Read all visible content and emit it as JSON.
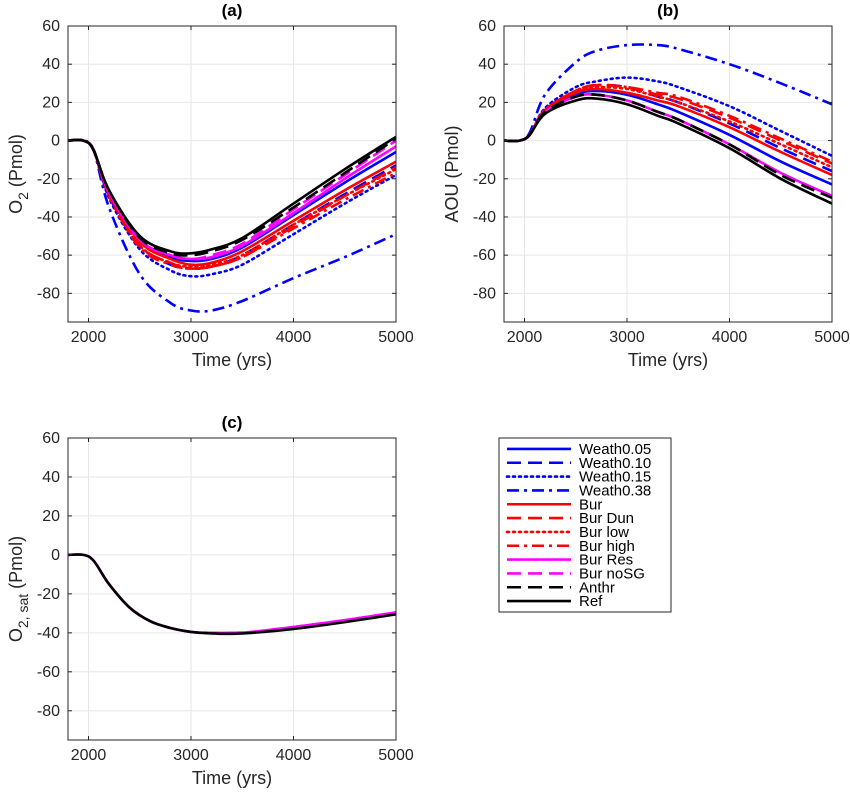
{
  "chart_data": {
    "type": "line",
    "x_ticks": [
      2000,
      3000,
      4000,
      5000
    ],
    "y_ticks": [
      60,
      40,
      20,
      0,
      -20,
      -40,
      -60,
      -80
    ],
    "grid": true,
    "legend": {
      "placement": "bottom-right panel",
      "entries": [
        {
          "name": "Weath0.05",
          "color": "#0000ff",
          "style": "solid"
        },
        {
          "name": "Weath0.10",
          "color": "#0000ff",
          "style": "dashed"
        },
        {
          "name": "Weath0.15",
          "color": "#0000ff",
          "style": "dotted"
        },
        {
          "name": "Weath0.38",
          "color": "#0000ff",
          "style": "dashdot"
        },
        {
          "name": "Bur",
          "color": "#ff0000",
          "style": "solid"
        },
        {
          "name": "Bur Dun",
          "color": "#ff0000",
          "style": "dashed"
        },
        {
          "name": "Bur low",
          "color": "#ff0000",
          "style": "dotted"
        },
        {
          "name": "Bur high",
          "color": "#ff0000",
          "style": "dashdot"
        },
        {
          "name": "Bur Res",
          "color": "#ff00ff",
          "style": "solid"
        },
        {
          "name": "Bur noSG",
          "color": "#ff00ff",
          "style": "dashed"
        },
        {
          "name": "Anthr",
          "color": "#000000",
          "style": "dashed"
        },
        {
          "name": "Ref",
          "color": "#000000",
          "style": "solid"
        }
      ]
    },
    "panels": [
      {
        "title": "(a)",
        "xlabel": "Time (yrs)",
        "ylabel_main": "O",
        "ylabel_sub": "2",
        "ylabel_unit": " (Pmol)",
        "xlim": [
          1800,
          5000
        ],
        "ylim": [
          -95,
          60
        ],
        "x": [
          1800,
          1950,
          2050,
          2200,
          2500,
          2800,
          3000,
          3200,
          3500,
          4000,
          4500,
          5000
        ],
        "series": [
          {
            "name": "Weath0.05",
            "values": [
              0,
              0,
              -5,
              -28,
              -52,
              -61,
              -63,
              -62,
              -56,
              -39,
              -22,
              -6
            ]
          },
          {
            "name": "Weath0.10",
            "values": [
              0,
              0,
              -5,
              -29,
              -55,
              -65,
              -67,
              -66,
              -60,
              -44,
              -28,
              -13
            ]
          },
          {
            "name": "Weath0.15",
            "values": [
              0,
              0,
              -5,
              -30,
              -57,
              -68,
              -71,
              -70,
              -65,
              -49,
              -33,
              -18
            ]
          },
          {
            "name": "Weath0.38",
            "values": [
              0,
              0,
              -5,
              -35,
              -70,
              -85,
              -89,
              -89,
              -84,
              -72,
              -61,
              -49
            ]
          },
          {
            "name": "Bur",
            "values": [
              0,
              0,
              -5,
              -27,
              -53,
              -62,
              -65,
              -64,
              -58,
              -42,
              -26,
              -11
            ]
          },
          {
            "name": "Bur Dun",
            "values": [
              0,
              0,
              -5,
              -28,
              -55,
              -64,
              -67,
              -66,
              -61,
              -45,
              -29,
              -14
            ]
          },
          {
            "name": "Bur low",
            "values": [
              0,
              0,
              -5,
              -28,
              -55,
              -64,
              -66,
              -65,
              -60,
              -44,
              -29,
              -15
            ]
          },
          {
            "name": "Bur high",
            "values": [
              0,
              0,
              -5,
              -29,
              -56,
              -65,
              -67,
              -66,
              -61,
              -46,
              -31,
              -17
            ]
          },
          {
            "name": "Bur Res",
            "values": [
              0,
              0,
              -5,
              -27,
              -52,
              -60,
              -62,
              -61,
              -55,
              -38,
              -20,
              -3
            ]
          },
          {
            "name": "Bur noSG",
            "values": [
              0,
              0,
              -5,
              -27,
              -52,
              -60,
              -62,
              -60,
              -54,
              -36,
              -18,
              0
            ]
          },
          {
            "name": "Anthr",
            "values": [
              0,
              0,
              -5,
              -26,
              -51,
              -59,
              -60,
              -58,
              -52,
              -35,
              -17,
              1
            ]
          },
          {
            "name": "Ref",
            "values": [
              0,
              0,
              -5,
              -26,
              -50,
              -58,
              -59,
              -57,
              -51,
              -33,
              -15,
              2
            ]
          }
        ]
      },
      {
        "title": "(b)",
        "xlabel": "Time (yrs)",
        "ylabel_main": "AOU (Pmol)",
        "ylabel_sub": "",
        "ylabel_unit": "",
        "xlim": [
          1800,
          5000
        ],
        "ylim": [
          -95,
          60
        ],
        "x": [
          1800,
          1950,
          2050,
          2200,
          2500,
          2700,
          3000,
          3300,
          3500,
          4000,
          4500,
          5000
        ],
        "series": [
          {
            "name": "Weath0.05",
            "values": [
              0,
              0,
              3,
              15,
              24,
              26,
              24,
              19,
              15,
              3,
              -11,
              -23
            ]
          },
          {
            "name": "Weath0.10",
            "values": [
              0,
              0,
              3,
              16,
              26,
              29,
              28,
              23,
              20,
              9,
              -4,
              -16
            ]
          },
          {
            "name": "Weath0.15",
            "values": [
              0,
              0,
              3,
              17,
              28,
              31,
              33,
              31,
              28,
              18,
              5,
              -8
            ]
          },
          {
            "name": "Weath0.38",
            "values": [
              0,
              0,
              4,
              24,
              41,
              47,
              50,
              50,
              48,
              40,
              30,
              19
            ]
          },
          {
            "name": "Bur",
            "values": [
              0,
              0,
              3,
              16,
              25,
              27,
              25,
              21,
              18,
              7,
              -6,
              -18
            ]
          },
          {
            "name": "Bur Dun",
            "values": [
              0,
              0,
              3,
              16,
              26,
              29,
              28,
              24,
              22,
              12,
              0,
              -12
            ]
          },
          {
            "name": "Bur low",
            "values": [
              0,
              0,
              3,
              16,
              26,
              28,
              27,
              23,
              20,
              10,
              -2,
              -14
            ]
          },
          {
            "name": "Bur high",
            "values": [
              0,
              0,
              3,
              16,
              26,
              29,
              28,
              25,
              23,
              13,
              1,
              -11
            ]
          },
          {
            "name": "Bur Res",
            "values": [
              0,
              0,
              3,
              15,
              23,
              24,
              21,
              15,
              11,
              -2,
              -17,
              -29
            ]
          },
          {
            "name": "Bur noSG",
            "values": [
              0,
              0,
              3,
              15,
              23,
              24,
              21,
              15,
              11,
              -2,
              -17,
              -29
            ]
          },
          {
            "name": "Anthr",
            "values": [
              0,
              0,
              3,
              15,
              23,
              24,
              21,
              15,
              11,
              -2,
              -18,
              -30
            ]
          },
          {
            "name": "Ref",
            "values": [
              0,
              0,
              3,
              14,
              21,
              22,
              19,
              13,
              9,
              -4,
              -20,
              -33
            ]
          }
        ]
      },
      {
        "title": "(c)",
        "xlabel": "Time (yrs)",
        "ylabel_main": "O",
        "ylabel_sub": "2, sat",
        "ylabel_unit": " (Pmol)",
        "xlim": [
          1800,
          5000
        ],
        "ylim": [
          -95,
          60
        ],
        "x": [
          1800,
          1950,
          2050,
          2200,
          2400,
          2600,
          2800,
          3000,
          3200,
          3400,
          3600,
          4000,
          4500,
          5000
        ],
        "series": [
          {
            "name": "Bur Res",
            "values": [
              0,
              0,
              -3,
              -15,
              -27,
              -34,
              -37.5,
              -39.5,
              -40,
              -40,
              -39.5,
              -37,
              -33.5,
              -29.5
            ]
          },
          {
            "name": "Bur noSG",
            "values": [
              0,
              0,
              -3,
              -15,
              -27,
              -34,
              -37.5,
              -39.5,
              -40,
              -40,
              -39.5,
              -37,
              -33.5,
              -29.5
            ]
          },
          {
            "name": "Ref",
            "values": [
              0,
              0,
              -3,
              -15,
              -27,
              -34,
              -37.5,
              -39.5,
              -40.3,
              -40.5,
              -40,
              -38,
              -34.5,
              -30.5
            ]
          }
        ]
      }
    ]
  }
}
